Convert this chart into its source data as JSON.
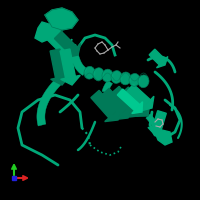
{
  "background_color": "#000000",
  "protein_color": "#00a878",
  "protein_color_light": "#00c990",
  "protein_color_dark": "#007a58",
  "ligand_color": "#888888",
  "axis_colors": {
    "x": "#dd2222",
    "y": "#22cc22",
    "z": "#2222dd"
  },
  "figsize": [
    2.0,
    2.0
  ],
  "dpi": 100
}
